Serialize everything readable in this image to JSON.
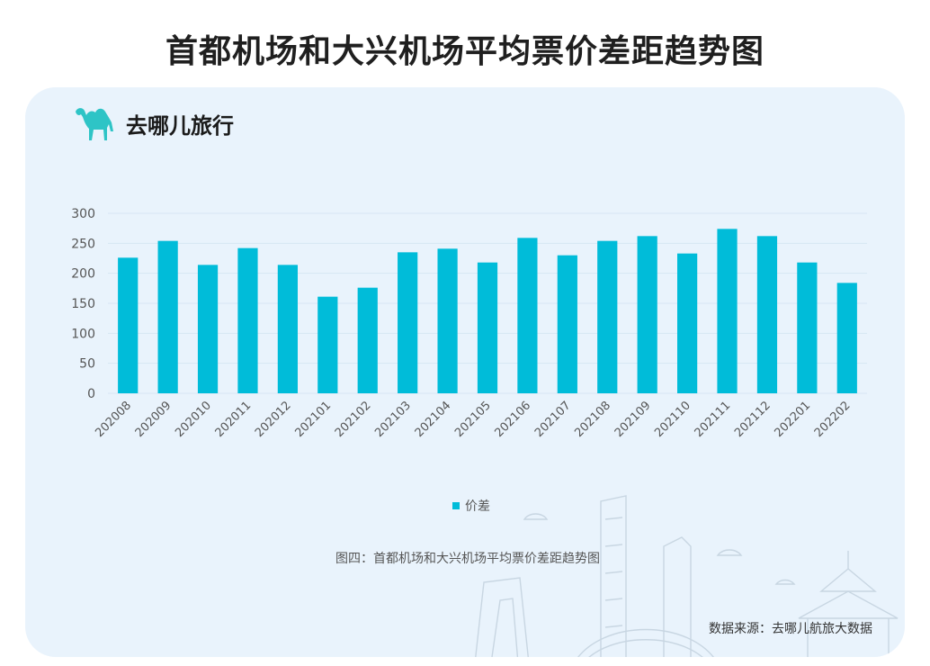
{
  "title": "首都机场和大兴机场平均票价差距趋势图",
  "brand": {
    "name": "去哪儿旅行",
    "logo_icon": "camel-icon",
    "logo_color": "#2ec4c6"
  },
  "caption": "图四：首都机场和大兴机场平均票价差距趋势图",
  "source": "数据来源：去哪儿航旅大数据",
  "colors": {
    "bar": "#00bcd9",
    "card_background": "#e9f3fc",
    "grid": "#d6e6f3"
  },
  "chart_data": {
    "type": "bar",
    "categories": [
      "202008",
      "202009",
      "202010",
      "202011",
      "202012",
      "202101",
      "202102",
      "202103",
      "202104",
      "202105",
      "202106",
      "202107",
      "202108",
      "202109",
      "202110",
      "202111",
      "202112",
      "202201",
      "202202"
    ],
    "series": [
      {
        "name": "价差",
        "values": [
          226,
          254,
          214,
          242,
          214,
          161,
          176,
          235,
          241,
          218,
          259,
          230,
          254,
          262,
          233,
          274,
          262,
          218,
          184
        ]
      }
    ],
    "ylim": [
      0,
      300
    ],
    "yticks": [
      0,
      50,
      100,
      150,
      200,
      250,
      300
    ],
    "grid": true,
    "legend_position": "bottom",
    "xlabel": "",
    "ylabel": ""
  }
}
